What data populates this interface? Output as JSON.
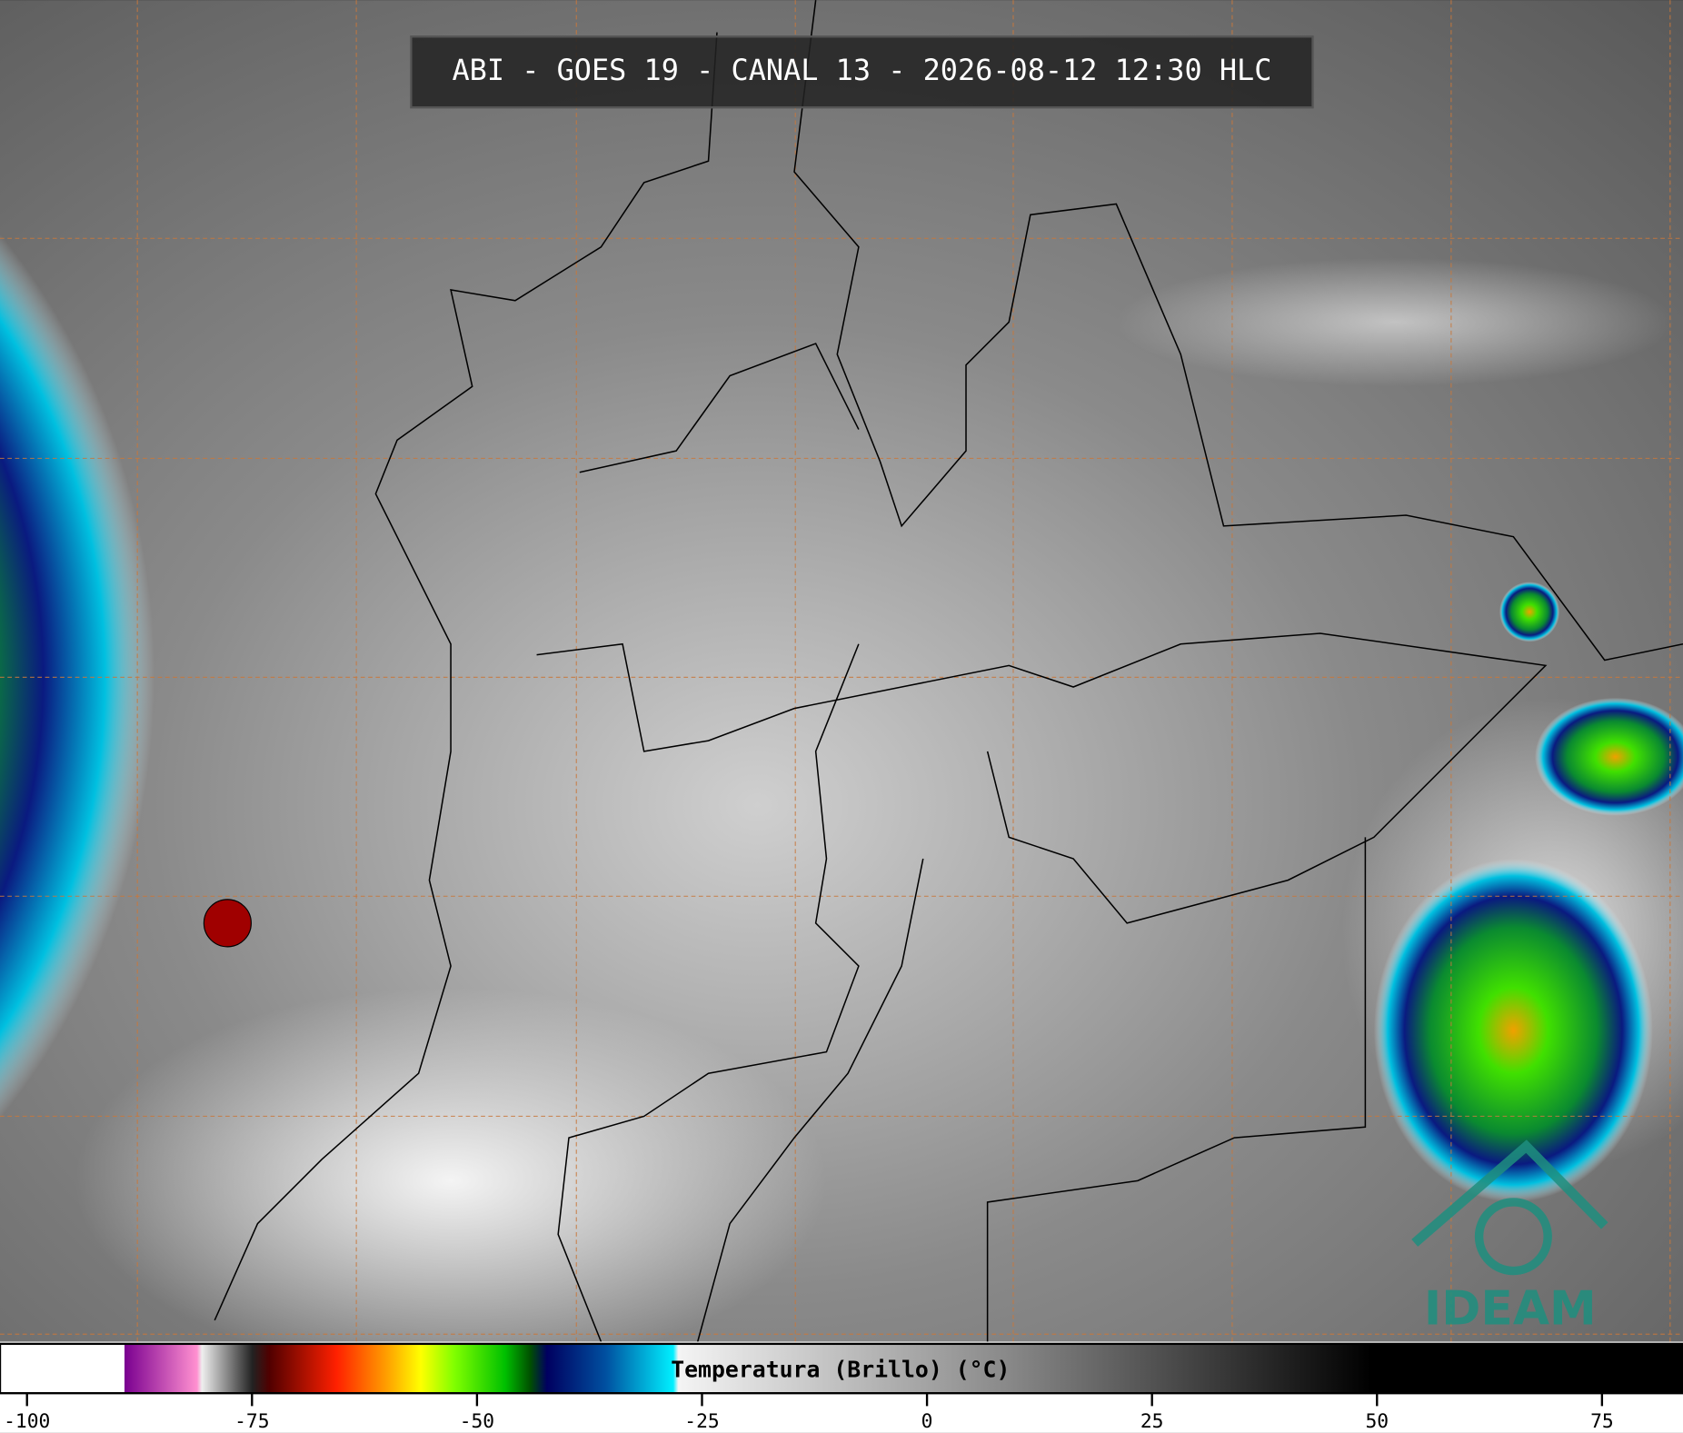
{
  "header": {
    "title": "ABI - GOES 19 - CANAL 13 - 2026-08-12 12:30 HLC"
  },
  "colorbar": {
    "label": "Temperatura (Brillo) (°C)",
    "range": [
      -103,
      84
    ],
    "ticks": [
      -100,
      -75,
      -50,
      -25,
      0,
      25,
      50,
      75
    ]
  },
  "logo": {
    "text": "IDEAM"
  }
}
